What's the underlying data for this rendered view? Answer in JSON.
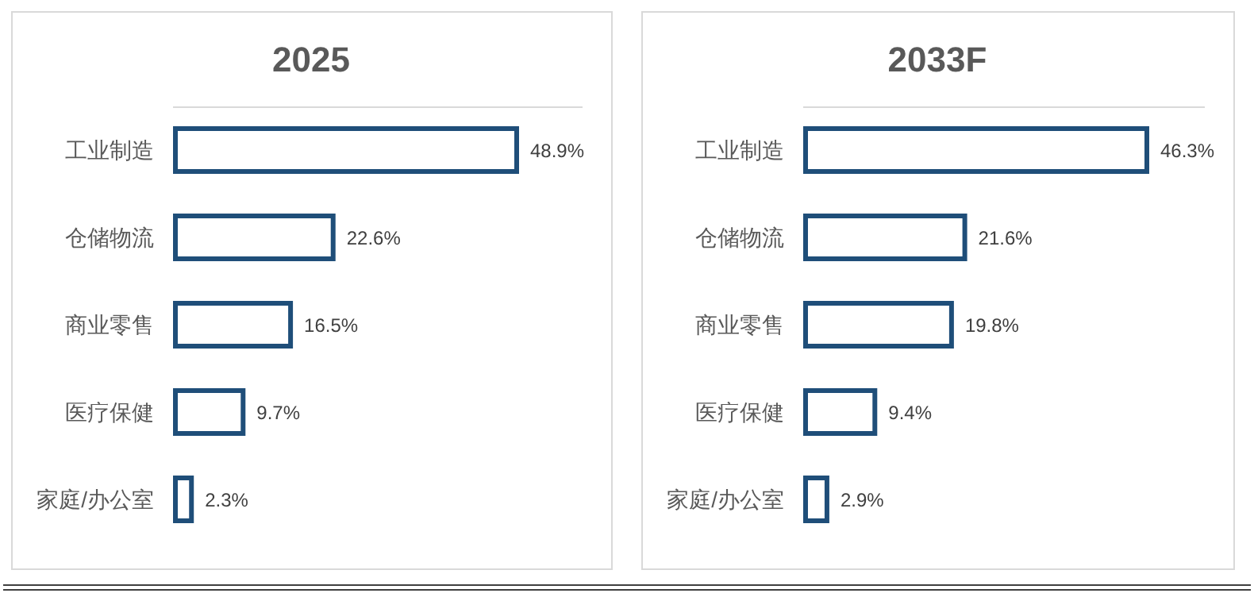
{
  "chart_data": [
    {
      "type": "bar",
      "orientation": "horizontal",
      "title": "2025",
      "categories": [
        "工业制造",
        "仓储物流",
        "商业零售",
        "医疗保健",
        "家庭/办公室"
      ],
      "values": [
        48.9,
        22.6,
        16.5,
        9.7,
        2.3
      ],
      "value_labels": [
        "48.9%",
        "22.6%",
        "16.5%",
        "9.7%",
        "2.3%"
      ],
      "color": "#1f4e79"
    },
    {
      "type": "bar",
      "orientation": "horizontal",
      "title": "2033F",
      "categories": [
        "工业制造",
        "仓储物流",
        "商业零售",
        "医疗保健",
        "家庭/办公室"
      ],
      "values": [
        46.3,
        21.6,
        19.8,
        9.4,
        2.9
      ],
      "value_labels": [
        "46.3%",
        "21.6%",
        "19.8%",
        "9.4%",
        "2.9%"
      ],
      "color": "#1f4e79"
    }
  ]
}
